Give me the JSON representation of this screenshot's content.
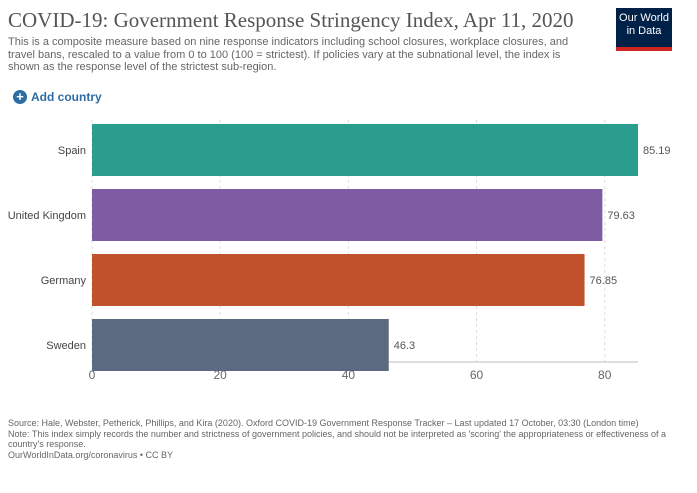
{
  "header": {
    "title": "COVID-19: Government Response Stringency Index, Apr 11, 2020",
    "subtitle": "This is a composite measure based on nine response indicators including school closures, workplace closures, and travel bans, rescaled to a value from 0 to 100 (100 = strictest). If policies vary at the subnational level, the index is shown as the response level of the strictest sub-region.",
    "logo_line1": "Our World",
    "logo_line2": "in Data",
    "add_country_label": "Add country",
    "add_country_icon": "plus-circle-icon"
  },
  "chart_data": {
    "type": "bar",
    "orientation": "horizontal",
    "categories": [
      "Spain",
      "United Kingdom",
      "Germany",
      "Sweden"
    ],
    "values": [
      85.19,
      79.63,
      76.85,
      46.3
    ],
    "value_labels": [
      "85.19",
      "79.63",
      "76.85",
      "46.3"
    ],
    "colors": [
      "#2a9d8f",
      "#7f5ba3",
      "#c0522b",
      "#5b6a80"
    ],
    "xlim": [
      0,
      85.19
    ],
    "xticks": [
      "0",
      "20",
      "40",
      "60",
      "80"
    ],
    "grid": "vertical dashed"
  },
  "footer": {
    "source": "Source: Hale, Webster, Petherick, Phillips, and Kira (2020). Oxford COVID-19 Government Response Tracker – Last updated 17 October, 03:30 (London time)",
    "note": "Note: This index simply records the number and strictness of government policies, and should not be interpreted as 'scoring' the appropriateness or effectiveness of a country's response.",
    "url": "OurWorldInData.org/coronavirus • CC BY"
  }
}
